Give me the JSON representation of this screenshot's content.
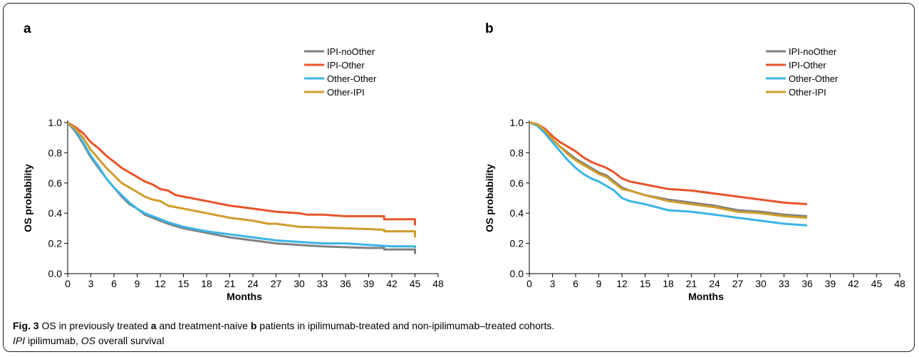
{
  "chart_data": [
    {
      "type": "line",
      "panel_label": "a",
      "xlabel": "Months",
      "ylabel": "OS probability",
      "xlim": [
        0,
        48
      ],
      "ylim": [
        0,
        1.0
      ],
      "x_ticks": [
        0,
        3,
        6,
        9,
        12,
        15,
        18,
        21,
        24,
        27,
        30,
        33,
        36,
        39,
        42,
        45,
        48
      ],
      "y_ticks": [
        "0.0",
        "0.2",
        "0.4",
        "0.6",
        "0.8",
        "1.0"
      ],
      "grid": false,
      "legend_position": "top-right",
      "series": [
        {
          "name": "IPI-noOther",
          "color": "#808080",
          "points": [
            [
              0,
              1.0
            ],
            [
              1,
              0.94
            ],
            [
              2,
              0.86
            ],
            [
              3,
              0.77
            ],
            [
              4,
              0.7
            ],
            [
              5,
              0.63
            ],
            [
              6,
              0.57
            ],
            [
              7,
              0.51
            ],
            [
              8,
              0.46
            ],
            [
              9,
              0.43
            ],
            [
              10,
              0.39
            ],
            [
              11,
              0.37
            ],
            [
              12,
              0.35
            ],
            [
              13,
              0.33
            ],
            [
              15,
              0.3
            ],
            [
              18,
              0.27
            ],
            [
              21,
              0.24
            ],
            [
              24,
              0.22
            ],
            [
              27,
              0.2
            ],
            [
              30,
              0.19
            ],
            [
              33,
              0.18
            ],
            [
              36,
              0.175
            ],
            [
              39,
              0.17
            ],
            [
              41,
              0.17
            ],
            [
              41,
              0.16
            ],
            [
              45,
              0.16
            ],
            [
              45,
              0.13
            ]
          ]
        },
        {
          "name": "IPI-Other",
          "color": "#e8542b",
          "points": [
            [
              0,
              1.0
            ],
            [
              1,
              0.97
            ],
            [
              2,
              0.93
            ],
            [
              3,
              0.87
            ],
            [
              4,
              0.83
            ],
            [
              5,
              0.78
            ],
            [
              6,
              0.74
            ],
            [
              7,
              0.7
            ],
            [
              8,
              0.67
            ],
            [
              9,
              0.64
            ],
            [
              10,
              0.61
            ],
            [
              11,
              0.59
            ],
            [
              12,
              0.56
            ],
            [
              13,
              0.55
            ],
            [
              14,
              0.52
            ],
            [
              15,
              0.51
            ],
            [
              18,
              0.48
            ],
            [
              21,
              0.45
            ],
            [
              24,
              0.43
            ],
            [
              27,
              0.41
            ],
            [
              30,
              0.4
            ],
            [
              31,
              0.39
            ],
            [
              33,
              0.39
            ],
            [
              36,
              0.38
            ],
            [
              39,
              0.38
            ],
            [
              41,
              0.38
            ],
            [
              41,
              0.36
            ],
            [
              45,
              0.36
            ],
            [
              45,
              0.32
            ]
          ]
        },
        {
          "name": "Other-Other",
          "color": "#3cb4e6",
          "points": [
            [
              0,
              1.0
            ],
            [
              1,
              0.95
            ],
            [
              2,
              0.87
            ],
            [
              3,
              0.78
            ],
            [
              4,
              0.71
            ],
            [
              5,
              0.63
            ],
            [
              6,
              0.57
            ],
            [
              7,
              0.52
            ],
            [
              8,
              0.47
            ],
            [
              9,
              0.43
            ],
            [
              10,
              0.4
            ],
            [
              11,
              0.38
            ],
            [
              12,
              0.36
            ],
            [
              13,
              0.34
            ],
            [
              15,
              0.31
            ],
            [
              18,
              0.28
            ],
            [
              21,
              0.26
            ],
            [
              24,
              0.24
            ],
            [
              27,
              0.22
            ],
            [
              30,
              0.21
            ],
            [
              33,
              0.2
            ],
            [
              36,
              0.2
            ],
            [
              39,
              0.19
            ],
            [
              42,
              0.18
            ],
            [
              45,
              0.18
            ],
            [
              45,
              0.17
            ]
          ]
        },
        {
          "name": "Other-IPI",
          "color": "#d09c2a",
          "points": [
            [
              0,
              1.0
            ],
            [
              1,
              0.96
            ],
            [
              2,
              0.9
            ],
            [
              3,
              0.82
            ],
            [
              4,
              0.76
            ],
            [
              5,
              0.7
            ],
            [
              6,
              0.65
            ],
            [
              7,
              0.6
            ],
            [
              8,
              0.57
            ],
            [
              9,
              0.54
            ],
            [
              10,
              0.51
            ],
            [
              11,
              0.49
            ],
            [
              12,
              0.48
            ],
            [
              13,
              0.45
            ],
            [
              15,
              0.43
            ],
            [
              18,
              0.4
            ],
            [
              21,
              0.37
            ],
            [
              24,
              0.35
            ],
            [
              26,
              0.33
            ],
            [
              27,
              0.33
            ],
            [
              30,
              0.31
            ],
            [
              33,
              0.305
            ],
            [
              36,
              0.3
            ],
            [
              39,
              0.295
            ],
            [
              41,
              0.29
            ],
            [
              41,
              0.28
            ],
            [
              45,
              0.28
            ],
            [
              45,
              0.24
            ]
          ]
        }
      ]
    },
    {
      "type": "line",
      "panel_label": "b",
      "xlabel": "Months",
      "ylabel": "OS probability",
      "xlim": [
        0,
        48
      ],
      "ylim": [
        0,
        1.0
      ],
      "x_ticks": [
        0,
        3,
        6,
        9,
        12,
        15,
        18,
        21,
        24,
        27,
        30,
        33,
        36,
        39,
        42,
        45,
        48
      ],
      "y_ticks": [
        "0.0",
        "0.2",
        "0.4",
        "0.6",
        "0.8",
        "1.0"
      ],
      "grid": false,
      "legend_position": "top-right",
      "series": [
        {
          "name": "IPI-noOther",
          "color": "#808080",
          "points": [
            [
              0,
              1.0
            ],
            [
              1,
              0.99
            ],
            [
              2,
              0.95
            ],
            [
              3,
              0.89
            ],
            [
              4,
              0.84
            ],
            [
              5,
              0.8
            ],
            [
              6,
              0.76
            ],
            [
              7,
              0.73
            ],
            [
              8,
              0.7
            ],
            [
              9,
              0.67
            ],
            [
              10,
              0.65
            ],
            [
              11,
              0.61
            ],
            [
              12,
              0.57
            ],
            [
              13,
              0.55
            ],
            [
              15,
              0.52
            ],
            [
              18,
              0.49
            ],
            [
              21,
              0.47
            ],
            [
              24,
              0.45
            ],
            [
              27,
              0.42
            ],
            [
              30,
              0.41
            ],
            [
              33,
              0.39
            ],
            [
              36,
              0.38
            ]
          ]
        },
        {
          "name": "IPI-Other",
          "color": "#e8542b",
          "points": [
            [
              0,
              1.0
            ],
            [
              1,
              0.99
            ],
            [
              2,
              0.96
            ],
            [
              3,
              0.91
            ],
            [
              4,
              0.87
            ],
            [
              5,
              0.84
            ],
            [
              6,
              0.81
            ],
            [
              7,
              0.77
            ],
            [
              8,
              0.74
            ],
            [
              9,
              0.72
            ],
            [
              10,
              0.7
            ],
            [
              11,
              0.67
            ],
            [
              12,
              0.63
            ],
            [
              13,
              0.61
            ],
            [
              15,
              0.59
            ],
            [
              18,
              0.56
            ],
            [
              21,
              0.55
            ],
            [
              24,
              0.53
            ],
            [
              27,
              0.51
            ],
            [
              30,
              0.49
            ],
            [
              33,
              0.47
            ],
            [
              36,
              0.46
            ]
          ]
        },
        {
          "name": "Other-Other",
          "color": "#3cb4e6",
          "points": [
            [
              0,
              1.0
            ],
            [
              1,
              0.98
            ],
            [
              2,
              0.93
            ],
            [
              3,
              0.87
            ],
            [
              4,
              0.81
            ],
            [
              5,
              0.75
            ],
            [
              6,
              0.7
            ],
            [
              7,
              0.66
            ],
            [
              8,
              0.63
            ],
            [
              9,
              0.61
            ],
            [
              10,
              0.58
            ],
            [
              11,
              0.55
            ],
            [
              12,
              0.5
            ],
            [
              13,
              0.48
            ],
            [
              15,
              0.46
            ],
            [
              18,
              0.42
            ],
            [
              21,
              0.41
            ],
            [
              24,
              0.39
            ],
            [
              27,
              0.37
            ],
            [
              30,
              0.35
            ],
            [
              33,
              0.33
            ],
            [
              36,
              0.32
            ]
          ]
        },
        {
          "name": "Other-IPI",
          "color": "#d09c2a",
          "points": [
            [
              0,
              1.0
            ],
            [
              1,
              0.99
            ],
            [
              2,
              0.95
            ],
            [
              3,
              0.89
            ],
            [
              4,
              0.84
            ],
            [
              5,
              0.79
            ],
            [
              6,
              0.75
            ],
            [
              7,
              0.72
            ],
            [
              8,
              0.69
            ],
            [
              9,
              0.66
            ],
            [
              10,
              0.64
            ],
            [
              11,
              0.6
            ],
            [
              12,
              0.56
            ],
            [
              13,
              0.55
            ],
            [
              15,
              0.52
            ],
            [
              18,
              0.48
            ],
            [
              21,
              0.46
            ],
            [
              24,
              0.44
            ],
            [
              27,
              0.41
            ],
            [
              30,
              0.4
            ],
            [
              33,
              0.38
            ],
            [
              36,
              0.37
            ]
          ]
        }
      ]
    }
  ],
  "caption": {
    "fig_label": "Fig. 3",
    "text_1": " OS in previously treated ",
    "label_a": "a",
    "text_2": " and treatment-naive ",
    "label_b": "b",
    "text_3": " patients in ipilimumab-treated and non-ipilimumab–treated cohorts.",
    "abbr_ipi": "IPI",
    "text_4": " ipilimumab, ",
    "abbr_os": "OS",
    "text_5": " overall survival"
  }
}
